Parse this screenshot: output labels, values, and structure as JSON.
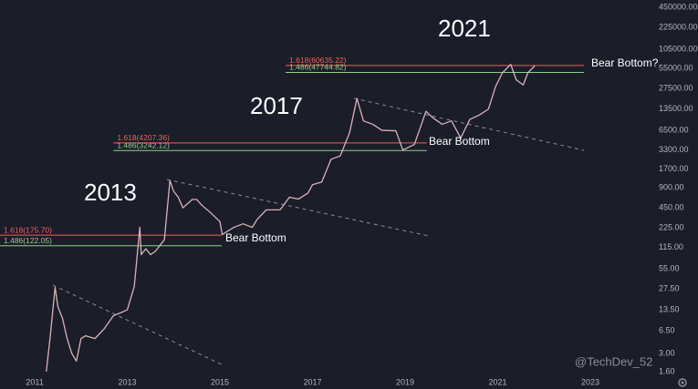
{
  "chart_data": {
    "type": "line",
    "log_scale": true,
    "grid": false,
    "color": "#d8b4b8",
    "xlim": [
      2010.25,
      2024.34
    ],
    "ylim": [
      1.5,
      578000
    ],
    "xticks": [
      2011,
      2013,
      2015,
      2017,
      2019,
      2021,
      2023
    ],
    "yticks": [
      {
        "value": 450000,
        "label": "450000.00"
      },
      {
        "value": 225000,
        "label": "225000.00"
      },
      {
        "value": 105000,
        "label": "105000.00"
      },
      {
        "value": 55000,
        "label": "55000.00"
      },
      {
        "value": 27500,
        "label": "27500.00"
      },
      {
        "value": 13500,
        "label": "13500.00"
      },
      {
        "value": 6500,
        "label": "6500.00"
      },
      {
        "value": 3300,
        "label": "3300.00"
      },
      {
        "value": 1700,
        "label": "1700.00"
      },
      {
        "value": 900,
        "label": "900.00"
      },
      {
        "value": 450,
        "label": "450.00"
      },
      {
        "value": 225,
        "label": "225.00"
      },
      {
        "value": 115,
        "label": "115.00"
      },
      {
        "value": 55,
        "label": "55.00"
      },
      {
        "value": 27.5,
        "label": "27.50"
      },
      {
        "value": 13.5,
        "label": "13.50"
      },
      {
        "value": 6.5,
        "label": "6.50"
      },
      {
        "value": 3,
        "label": "3.00"
      },
      {
        "value": 1.6,
        "label": "1.60"
      }
    ],
    "x": [
      2011.25,
      2011.33,
      2011.44,
      2011.5,
      2011.6,
      2011.7,
      2011.8,
      2011.9,
      2012.0,
      2012.1,
      2012.3,
      2012.5,
      2012.7,
      2012.9,
      2013.0,
      2013.15,
      2013.27,
      2013.3,
      2013.4,
      2013.5,
      2013.6,
      2013.8,
      2013.92,
      2014.0,
      2014.1,
      2014.2,
      2014.4,
      2014.5,
      2014.6,
      2014.8,
      2015.0,
      2015.05,
      2015.3,
      2015.5,
      2015.7,
      2015.8,
      2016.0,
      2016.3,
      2016.5,
      2016.7,
      2016.9,
      2017.0,
      2017.2,
      2017.4,
      2017.6,
      2017.8,
      2017.96,
      2018.1,
      2018.3,
      2018.5,
      2018.8,
      2018.95,
      2019.2,
      2019.45,
      2019.6,
      2019.8,
      2020.0,
      2020.2,
      2020.4,
      2020.6,
      2020.8,
      2020.95,
      2021.1,
      2021.28,
      2021.4,
      2021.55,
      2021.65,
      2021.8
    ],
    "values": [
      1.6,
      5,
      29,
      15,
      10,
      5,
      3,
      2.3,
      5,
      5.5,
      5,
      7,
      11,
      12.5,
      13.5,
      30,
      230,
      90,
      110,
      90,
      100,
      150,
      1150,
      800,
      650,
      450,
      600,
      600,
      500,
      380,
      280,
      180,
      230,
      260,
      230,
      300,
      420,
      420,
      650,
      610,
      750,
      1000,
      1100,
      2400,
      2700,
      6000,
      19500,
      9000,
      8000,
      6500,
      6400,
      3300,
      4000,
      12500,
      10000,
      8000,
      9000,
      5000,
      9500,
      11000,
      13500,
      29000,
      47000,
      63000,
      37000,
      31000,
      47000,
      60000
    ],
    "levels": [
      {
        "label": "1.618(175.70)",
        "value": 175.7,
        "color": "#f0605a",
        "x_start": 2010.25,
        "x_end": 2015.04
      },
      {
        "label": "1.486(122.05)",
        "value": 122.05,
        "color": "#8fd18a",
        "x_start": 2010.25,
        "x_end": 2015.04
      },
      {
        "label": "1.618(4207.36)",
        "value": 4207.36,
        "color": "#f0605a",
        "x_start": 2012.7,
        "x_end": 2019.47
      },
      {
        "label": "1.486(3242.12)",
        "value": 3242.12,
        "color": "#8fd18a",
        "x_start": 2012.7,
        "x_end": 2019.47
      },
      {
        "label": "1.618(60635.22)",
        "value": 60635.22,
        "color": "#f0605a",
        "x_start": 2016.42,
        "x_end": 2022.86
      },
      {
        "label": "1.486(47744.82)",
        "value": 47744.82,
        "color": "#8fd18a",
        "x_start": 2016.42,
        "x_end": 2022.86
      }
    ],
    "period_labels": [
      "2013",
      "2017",
      "2021"
    ],
    "notes": [
      "Bear Bottom",
      "Bear Bottom",
      "Bear Bottom?"
    ],
    "watermark": "@TechDev_52"
  }
}
